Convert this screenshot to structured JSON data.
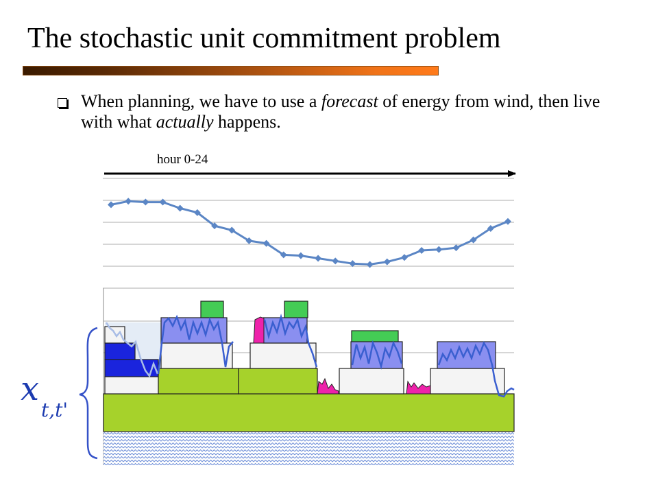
{
  "slide": {
    "title": "The stochastic unit commitment problem",
    "bullet": {
      "pre": "When planning, we have to use a ",
      "emph1": "forecast",
      "mid": " of energy from wind, then live with what ",
      "emph2": "actually",
      "post": " happens."
    },
    "axis_label": "hour 0-24",
    "variable_label": {
      "base": "x",
      "subscript": "t,t'"
    }
  },
  "colors": {
    "forecast_line": "#5b86c5",
    "wind_actual": "#3a5fd0",
    "wind_fill": "#8a8ff0",
    "baseload": "#a6d22b",
    "peaker": "#44cc55",
    "spinning_reserve": "#f4f4f4",
    "coal_blue": "#1a24dd",
    "shortfall": "#ee22aa",
    "hatch": "#7090d8",
    "title_bar_start": "#3a1a00",
    "title_bar_end": "#ff7a1a"
  },
  "chart_data": {
    "type": "line",
    "series": [
      {
        "values": [
          0.7,
          0.74,
          0.73,
          0.73,
          0.66,
          0.61,
          0.46,
          0.41,
          0.29,
          0.26,
          0.13,
          0.12,
          0.09,
          0.06,
          0.03,
          0.02,
          0.05,
          0.1,
          0.18,
          0.19,
          0.21,
          0.3,
          0.43,
          0.51
        ]
      }
    ],
    "x": [
      1,
      2,
      3,
      4,
      5,
      6,
      7,
      8,
      9,
      10,
      11,
      12,
      13,
      14,
      15,
      16,
      17,
      18,
      19,
      20,
      21,
      22,
      23,
      24
    ],
    "ylim": [
      0,
      1
    ],
    "grid": true,
    "legend": "none"
  }
}
